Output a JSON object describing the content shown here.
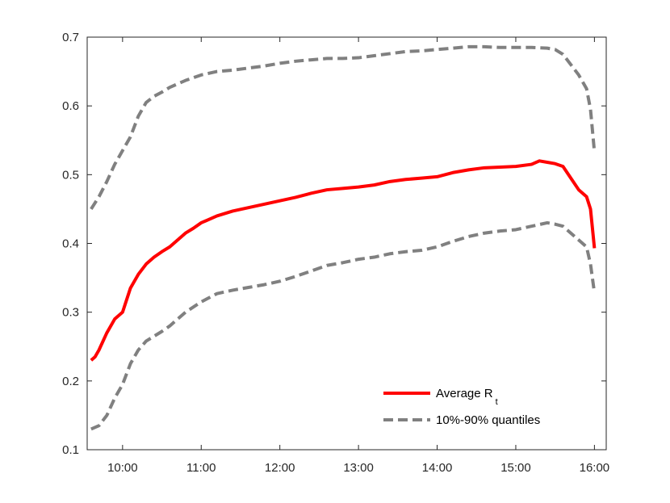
{
  "chart_data": {
    "type": "line",
    "title": "",
    "xlabel": "",
    "ylabel": "",
    "xlim": [
      9.55,
      16.15
    ],
    "ylim": [
      0.1,
      0.7
    ],
    "x_ticks": [
      {
        "value": 10,
        "label": "10:00"
      },
      {
        "value": 11,
        "label": "11:00"
      },
      {
        "value": 12,
        "label": "12:00"
      },
      {
        "value": 13,
        "label": "13:00"
      },
      {
        "value": 14,
        "label": "14:00"
      },
      {
        "value": 15,
        "label": "15:00"
      },
      {
        "value": 16,
        "label": "16:00"
      }
    ],
    "y_ticks": [
      {
        "value": 0.1,
        "label": "0.1"
      },
      {
        "value": 0.2,
        "label": "0.2"
      },
      {
        "value": 0.3,
        "label": "0.3"
      },
      {
        "value": 0.4,
        "label": "0.4"
      },
      {
        "value": 0.5,
        "label": "0.5"
      },
      {
        "value": 0.6,
        "label": "0.6"
      },
      {
        "value": 0.7,
        "label": "0.7"
      }
    ],
    "grid": false,
    "legend_position": "bottom-right",
    "series": [
      {
        "name": "Average R",
        "name_subscript": "t",
        "color": "#ff0000",
        "style": "solid",
        "x": [
          9.6,
          9.65,
          9.7,
          9.8,
          9.9,
          10.0,
          10.1,
          10.2,
          10.3,
          10.4,
          10.5,
          10.6,
          10.7,
          10.8,
          10.9,
          11.0,
          11.2,
          11.4,
          11.6,
          11.8,
          12.0,
          12.2,
          12.4,
          12.6,
          12.8,
          13.0,
          13.2,
          13.4,
          13.6,
          13.8,
          14.0,
          14.2,
          14.4,
          14.6,
          14.8,
          15.0,
          15.2,
          15.3,
          15.4,
          15.5,
          15.6,
          15.7,
          15.8,
          15.9,
          15.95,
          16.0
        ],
        "y": [
          0.23,
          0.235,
          0.245,
          0.27,
          0.29,
          0.3,
          0.335,
          0.355,
          0.37,
          0.38,
          0.388,
          0.395,
          0.405,
          0.415,
          0.422,
          0.43,
          0.44,
          0.447,
          0.452,
          0.457,
          0.462,
          0.467,
          0.473,
          0.478,
          0.48,
          0.482,
          0.485,
          0.49,
          0.493,
          0.495,
          0.497,
          0.503,
          0.507,
          0.51,
          0.511,
          0.512,
          0.515,
          0.52,
          0.518,
          0.516,
          0.512,
          0.495,
          0.478,
          0.468,
          0.45,
          0.393
        ]
      },
      {
        "name": "10%-90% quantiles",
        "color": "#808080",
        "style": "dashed",
        "x": [
          9.6,
          9.7,
          9.8,
          9.9,
          10.0,
          10.1,
          10.2,
          10.3,
          10.4,
          10.5,
          10.6,
          10.8,
          11.0,
          11.2,
          11.4,
          11.6,
          11.8,
          12.0,
          12.2,
          12.4,
          12.6,
          12.8,
          13.0,
          13.2,
          13.4,
          13.6,
          13.8,
          14.0,
          14.2,
          14.4,
          14.6,
          14.8,
          15.0,
          15.2,
          15.4,
          15.5,
          15.6,
          15.7,
          15.8,
          15.9,
          15.95,
          16.0
        ],
        "y": [
          0.45,
          0.468,
          0.49,
          0.515,
          0.535,
          0.555,
          0.585,
          0.605,
          0.614,
          0.62,
          0.627,
          0.637,
          0.645,
          0.65,
          0.652,
          0.655,
          0.658,
          0.662,
          0.665,
          0.667,
          0.669,
          0.669,
          0.67,
          0.673,
          0.676,
          0.679,
          0.68,
          0.682,
          0.684,
          0.686,
          0.686,
          0.685,
          0.685,
          0.685,
          0.684,
          0.682,
          0.675,
          0.66,
          0.645,
          0.625,
          0.595,
          0.533
        ]
      },
      {
        "name": "",
        "color": "#808080",
        "style": "dashed",
        "x": [
          9.6,
          9.7,
          9.8,
          9.9,
          10.0,
          10.1,
          10.2,
          10.3,
          10.4,
          10.5,
          10.6,
          10.8,
          11.0,
          11.2,
          11.4,
          11.6,
          11.8,
          12.0,
          12.2,
          12.4,
          12.6,
          12.8,
          13.0,
          13.2,
          13.4,
          13.6,
          13.8,
          14.0,
          14.2,
          14.4,
          14.6,
          14.8,
          15.0,
          15.2,
          15.4,
          15.5,
          15.6,
          15.7,
          15.8,
          15.9,
          15.95,
          16.0
        ],
        "y": [
          0.13,
          0.135,
          0.15,
          0.175,
          0.195,
          0.225,
          0.245,
          0.258,
          0.265,
          0.272,
          0.28,
          0.3,
          0.315,
          0.327,
          0.332,
          0.336,
          0.34,
          0.345,
          0.352,
          0.36,
          0.368,
          0.372,
          0.377,
          0.38,
          0.385,
          0.388,
          0.39,
          0.395,
          0.403,
          0.41,
          0.415,
          0.418,
          0.42,
          0.425,
          0.43,
          0.428,
          0.425,
          0.415,
          0.405,
          0.395,
          0.37,
          0.328
        ]
      }
    ]
  }
}
